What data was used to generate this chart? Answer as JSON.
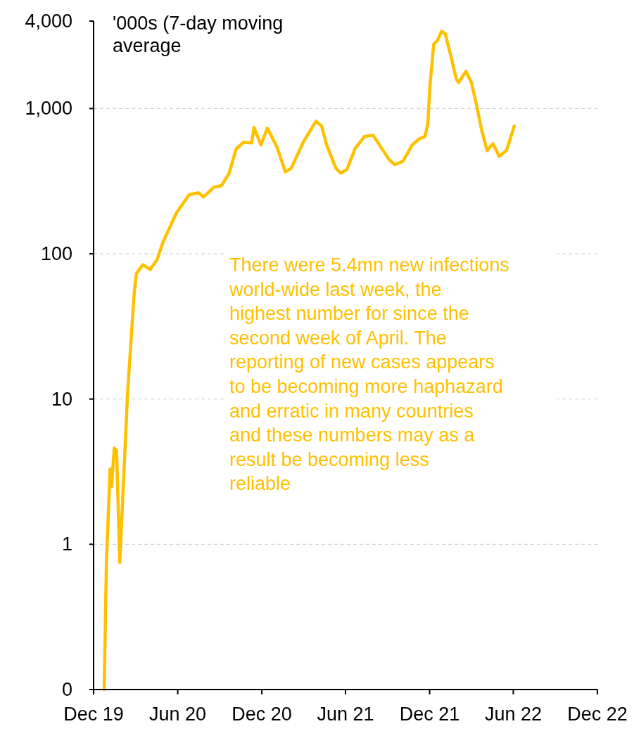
{
  "chart_data": {
    "type": "line",
    "ylabel": "'000s (7-day moving average",
    "log": "y",
    "grid": "y",
    "marker": "none",
    "line_style": "solid",
    "annotations": [
      "There were 5.4mn new infections world-wide last week, the highest number for since the second week of April. The reporting of new cases appears to be becoming more haphazard and erratic in many countries and these numbers may as a result be becoming less reliable"
    ],
    "xlim": [
      "2019-12-01",
      "2022-12-01"
    ],
    "xticks": [
      {
        "value": "2019-12-01",
        "label": "Dec 19"
      },
      {
        "value": "2020-06-01",
        "label": "Jun 20"
      },
      {
        "value": "2020-12-01",
        "label": "Dec 20"
      },
      {
        "value": "2021-06-01",
        "label": "Jun 21"
      },
      {
        "value": "2021-12-01",
        "label": "Dec 21"
      },
      {
        "value": "2022-06-01",
        "label": "Jun 22"
      },
      {
        "value": "2022-12-01",
        "label": "Dec 22"
      }
    ],
    "ylim": [
      0.1,
      4000
    ],
    "yticks": [
      {
        "value": 0.1,
        "label": "0"
      },
      1,
      10,
      100,
      {
        "value": 1000,
        "label": "1,000"
      },
      {
        "value": 4000,
        "label": "4,000"
      }
    ],
    "x": [
      "2019-12-24",
      "2019-12-29",
      "2020-01-06",
      "2020-01-09",
      "2020-01-15",
      "2020-01-20",
      "2020-01-27",
      "2020-02-13",
      "2020-02-27",
      "2020-03-03",
      "2020-03-17",
      "2020-04-02",
      "2020-04-17",
      "2020-04-29",
      "2020-05-18",
      "2020-05-30",
      "2020-06-26",
      "2020-07-16",
      "2020-07-27",
      "2020-08-19",
      "2020-09-04",
      "2020-09-21",
      "2020-10-06",
      "2020-10-22",
      "2020-11-09",
      "2020-11-14",
      "2020-11-22",
      "2020-11-29",
      "2020-12-13",
      "2021-01-03",
      "2021-01-21",
      "2021-02-03",
      "2021-03-01",
      "2021-03-29",
      "2021-04-10",
      "2021-04-21",
      "2021-05-11",
      "2021-05-22",
      "2021-06-04",
      "2021-06-22",
      "2021-07-12",
      "2021-07-31",
      "2021-08-19",
      "2021-09-03",
      "2021-09-16",
      "2021-10-04",
      "2021-10-24",
      "2021-11-09",
      "2021-11-21",
      "2021-11-27",
      "2021-12-02",
      "2021-12-10",
      "2021-12-18",
      "2021-12-27",
      "2022-01-04",
      "2022-01-15",
      "2022-01-28",
      "2022-02-02",
      "2022-02-18",
      "2022-03-02",
      "2022-03-13",
      "2022-03-24",
      "2022-04-05",
      "2022-04-18",
      "2022-05-01",
      "2022-05-17",
      "2022-05-26",
      "2022-06-03"
    ],
    "series": [
      {
        "color": "#ffc000",
        "values": [
          0.1,
          0.77,
          3.3,
          2.5,
          4.6,
          4.4,
          0.75,
          11,
          52,
          73,
          84,
          78,
          91,
          118,
          160,
          193,
          255,
          263,
          246,
          288,
          294,
          359,
          525,
          586,
          580,
          741,
          641,
          561,
          733,
          542,
          367,
          388,
          586,
          819,
          757,
          561,
          388,
          359,
          380,
          530,
          641,
          655,
          530,
          449,
          411,
          434,
          561,
          620,
          641,
          783,
          1476,
          2782,
          2943,
          3398,
          3270,
          2382,
          1596,
          1510,
          1803,
          1510,
          1057,
          716,
          513,
          573,
          469,
          513,
          627,
          757
        ]
      }
    ]
  }
}
